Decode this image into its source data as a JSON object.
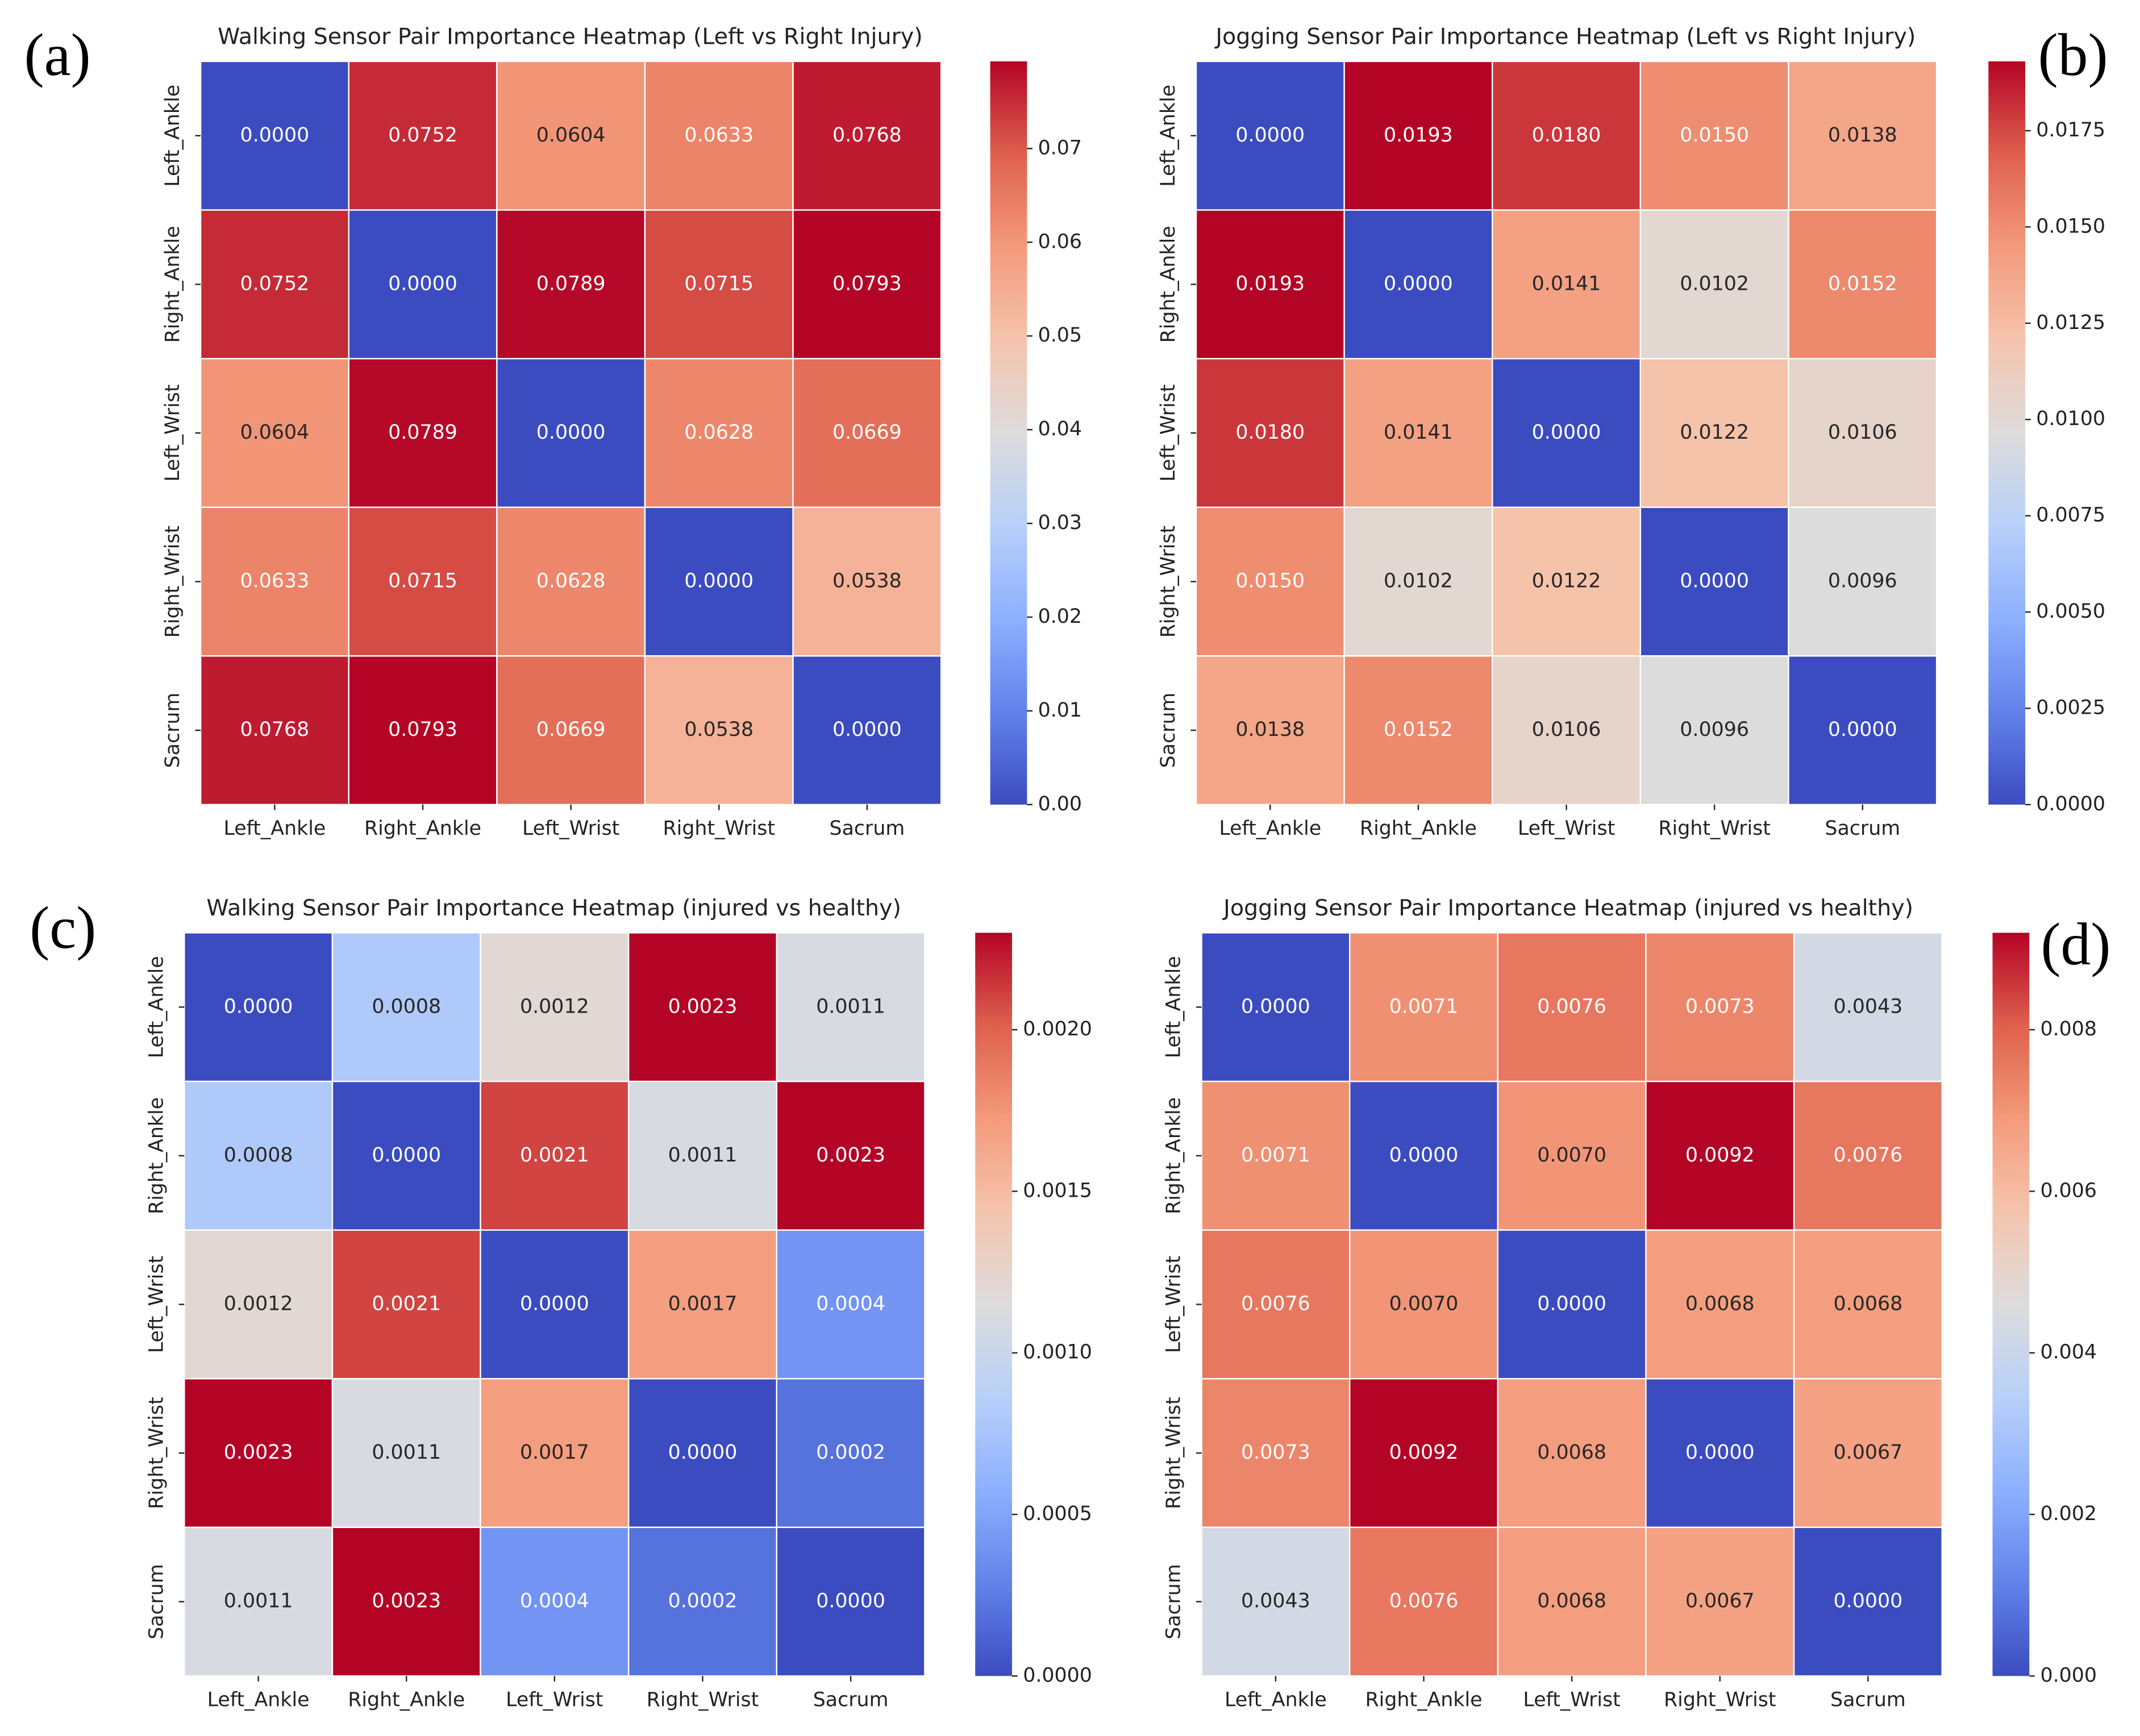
{
  "chart_data": [
    {
      "type": "heatmap",
      "panel_label": "(a)",
      "title": "Walking Sensor Pair Importance Heatmap (Left vs Right Injury)",
      "colormap": "coolwarm",
      "categories": [
        "Left_Ankle",
        "Right_Ankle",
        "Left_Wrist",
        "Right_Wrist",
        "Sacrum"
      ],
      "values": [
        [
          0,
          0.0752,
          0.0604,
          0.0633,
          0.0768
        ],
        [
          0.0752,
          0,
          0.0789,
          0.0715,
          0.0793
        ],
        [
          0.0604,
          0.0789,
          0,
          0.0628,
          0.0669
        ],
        [
          0.0633,
          0.0715,
          0.0628,
          0,
          0.0538
        ],
        [
          0.0768,
          0.0793,
          0.0669,
          0.0538,
          0
        ]
      ],
      "value_labels": [
        [
          "0.0000",
          "0.0752",
          "0.0604",
          "0.0633",
          "0.0768"
        ],
        [
          "0.0752",
          "0.0000",
          "0.0789",
          "0.0715",
          "0.0793"
        ],
        [
          "0.0604",
          "0.0789",
          "0.0000",
          "0.0628",
          "0.0669"
        ],
        [
          "0.0633",
          "0.0715",
          "0.0628",
          "0.0000",
          "0.0538"
        ],
        [
          "0.0768",
          "0.0793",
          "0.0669",
          "0.0538",
          "0.0000"
        ]
      ],
      "zlim": [
        0,
        0.0793
      ],
      "zticks": [
        {
          "value": 0,
          "label": "0.00"
        },
        0.01,
        0.02,
        0.03,
        0.04,
        0.05,
        0.06,
        0.07
      ]
    },
    {
      "type": "heatmap",
      "panel_label": "(b)",
      "title": "Jogging Sensor Pair Importance Heatmap (Left vs Right Injury)",
      "colormap": "coolwarm",
      "categories": [
        "Left_Ankle",
        "Right_Ankle",
        "Left_Wrist",
        "Right_Wrist",
        "Sacrum"
      ],
      "values": [
        [
          0,
          0.0193,
          0.018,
          0.015,
          0.0138
        ],
        [
          0.0193,
          0,
          0.0141,
          0.0102,
          0.0152
        ],
        [
          0.018,
          0.0141,
          0,
          0.0122,
          0.0106
        ],
        [
          0.015,
          0.0102,
          0.0122,
          0,
          0.0096
        ],
        [
          0.0138,
          0.0152,
          0.0106,
          0.0096,
          0
        ]
      ],
      "value_labels": [
        [
          "0.0000",
          "0.0193",
          "0.0180",
          "0.0150",
          "0.0138"
        ],
        [
          "0.0193",
          "0.0000",
          "0.0141",
          "0.0102",
          "0.0152"
        ],
        [
          "0.0180",
          "0.0141",
          "0.0000",
          "0.0122",
          "0.0106"
        ],
        [
          "0.0150",
          "0.0102",
          "0.0122",
          "0.0000",
          "0.0096"
        ],
        [
          "0.0138",
          "0.0152",
          "0.0106",
          "0.0096",
          "0.0000"
        ]
      ],
      "zlim": [
        0,
        0.0193
      ],
      "zticks": [
        {
          "value": 0,
          "label": "0.0000"
        },
        0.0025,
        {
          "value": 0.005,
          "label": "0.0050"
        },
        0.0075,
        {
          "value": 0.01,
          "label": "0.0100"
        },
        0.0125,
        {
          "value": 0.015,
          "label": "0.0150"
        },
        0.0175
      ]
    },
    {
      "type": "heatmap",
      "panel_label": "(c)",
      "title": "Walking Sensor Pair Importance Heatmap (injured vs healthy)",
      "colormap": "coolwarm",
      "categories": [
        "Left_Ankle",
        "Right_Ankle",
        "Left_Wrist",
        "Right_Wrist",
        "Sacrum"
      ],
      "values": [
        [
          0,
          0.0008,
          0.0012,
          0.0023,
          0.0011
        ],
        [
          0.0008,
          0,
          0.0021,
          0.0011,
          0.0023
        ],
        [
          0.0012,
          0.0021,
          0,
          0.0017,
          0.0004
        ],
        [
          0.0023,
          0.0011,
          0.0017,
          0,
          0.0002
        ],
        [
          0.0011,
          0.0023,
          0.0004,
          0.0002,
          0
        ]
      ],
      "value_labels": [
        [
          "0.0000",
          "0.0008",
          "0.0012",
          "0.0023",
          "0.0011"
        ],
        [
          "0.0008",
          "0.0000",
          "0.0021",
          "0.0011",
          "0.0023"
        ],
        [
          "0.0012",
          "0.0021",
          "0.0000",
          "0.0017",
          "0.0004"
        ],
        [
          "0.0023",
          "0.0011",
          "0.0017",
          "0.0000",
          "0.0002"
        ],
        [
          "0.0011",
          "0.0023",
          "0.0004",
          "0.0002",
          "0.0000"
        ]
      ],
      "zlim": [
        0,
        0.0023
      ],
      "zticks": [
        {
          "value": 0,
          "label": "0.0000"
        },
        0.0005,
        {
          "value": 0.001,
          "label": "0.0010"
        },
        0.0015,
        {
          "value": 0.002,
          "label": "0.0020"
        }
      ]
    },
    {
      "type": "heatmap",
      "panel_label": "(d)",
      "title": "Jogging Sensor Pair Importance Heatmap (injured vs healthy)",
      "colormap": "coolwarm",
      "categories": [
        "Left_Ankle",
        "Right_Ankle",
        "Left_Wrist",
        "Right_Wrist",
        "Sacrum"
      ],
      "values": [
        [
          0,
          0.0071,
          0.0076,
          0.0073,
          0.0043
        ],
        [
          0.0071,
          0,
          0.007,
          0.0092,
          0.0076
        ],
        [
          0.0076,
          0.007,
          0,
          0.0068,
          0.0068
        ],
        [
          0.0073,
          0.0092,
          0.0068,
          0,
          0.0067
        ],
        [
          0.0043,
          0.0076,
          0.0068,
          0.0067,
          0
        ]
      ],
      "value_labels": [
        [
          "0.0000",
          "0.0071",
          "0.0076",
          "0.0073",
          "0.0043"
        ],
        [
          "0.0071",
          "0.0000",
          "0.0070",
          "0.0092",
          "0.0076"
        ],
        [
          "0.0076",
          "0.0070",
          "0.0000",
          "0.0068",
          "0.0068"
        ],
        [
          "0.0073",
          "0.0092",
          "0.0068",
          "0.0000",
          "0.0067"
        ],
        [
          "0.0043",
          "0.0076",
          "0.0068",
          "0.0067",
          "0.0000"
        ]
      ],
      "zlim": [
        0,
        0.0092
      ],
      "zticks": [
        {
          "value": 0,
          "label": "0.000"
        },
        0.002,
        0.004,
        0.006,
        0.008
      ]
    }
  ]
}
